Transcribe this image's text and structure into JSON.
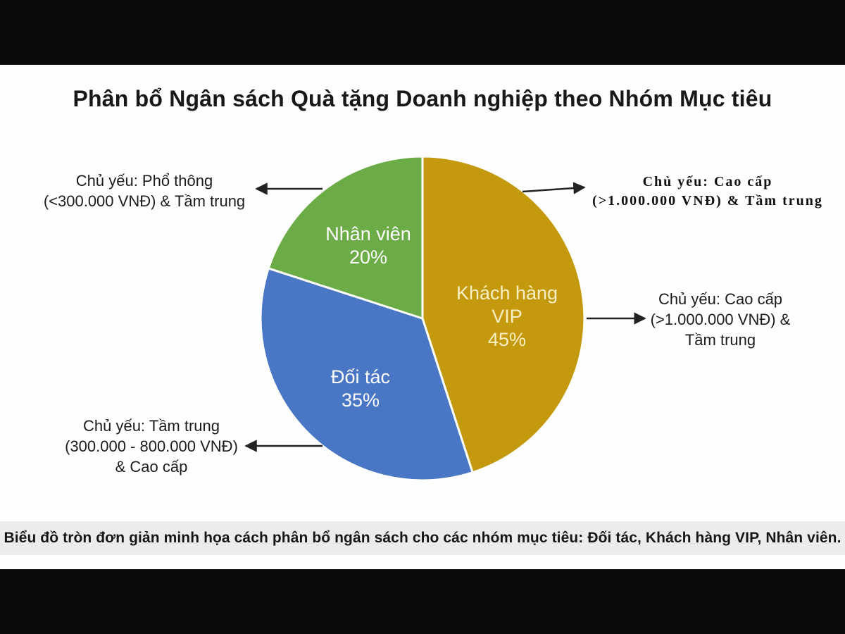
{
  "title": "Phân bổ Ngân sách Quà tặng Doanh nghiệp theo Nhóm Mục tiêu",
  "chart_data": {
    "type": "pie",
    "title": "Phân bổ Ngân sách Quà tặng Doanh nghiệp theo Nhóm Mục tiêu",
    "categories": [
      "Khách hàng VIP",
      "Đối tác",
      "Nhân viên"
    ],
    "values": [
      45,
      35,
      20
    ],
    "unit": "%",
    "colors": [
      "#C5990D",
      "#4A76C6",
      "#6CAC47"
    ],
    "slice_gap_color": "#FFFFFF",
    "start_angle_deg": 0,
    "direction": "clockwise",
    "legend": "none",
    "labels_inside": true
  },
  "pie_labels": [
    {
      "lines": [
        "Khách hàng",
        "VIP",
        "45%"
      ],
      "color": "#F8EFC2"
    },
    {
      "lines": [
        "Đối tác",
        "35%"
      ],
      "color": "#FFFFFF"
    },
    {
      "lines": [
        "Nhân viên",
        "20%"
      ],
      "color": "#FFFFFF"
    }
  ],
  "annotations": {
    "top_left": {
      "lines": [
        "Chủ yếu: Phổ thông",
        "(<300.000 VNĐ) & Tầm trung"
      ]
    },
    "top_right": {
      "lines": [
        "Chủ yếu: Cao cấp",
        "(>1.000.000 VNĐ) & Tầm trung"
      ]
    },
    "mid_right": {
      "lines": [
        "Chủ yếu: Cao cấp",
        "(>1.000.000 VNĐ) &",
        "Tầm trung"
      ]
    },
    "bottom_left": {
      "lines": [
        "Chủ yếu: Tầm trung",
        "(300.000 - 800.000 VNĐ)",
        "& Cao cấp"
      ]
    }
  },
  "caption": "Biểu đồ tròn đơn giản minh họa cách phân bổ ngân sách cho các nhóm mục tiêu: Đối tác, Khách hàng VIP, Nhân viên.",
  "colors": {
    "background": "#FEFEFE",
    "letterbox": "#0B0B0B",
    "caption_bar": "#ECECEC",
    "arrow": "#222222",
    "title_text": "#181818"
  }
}
